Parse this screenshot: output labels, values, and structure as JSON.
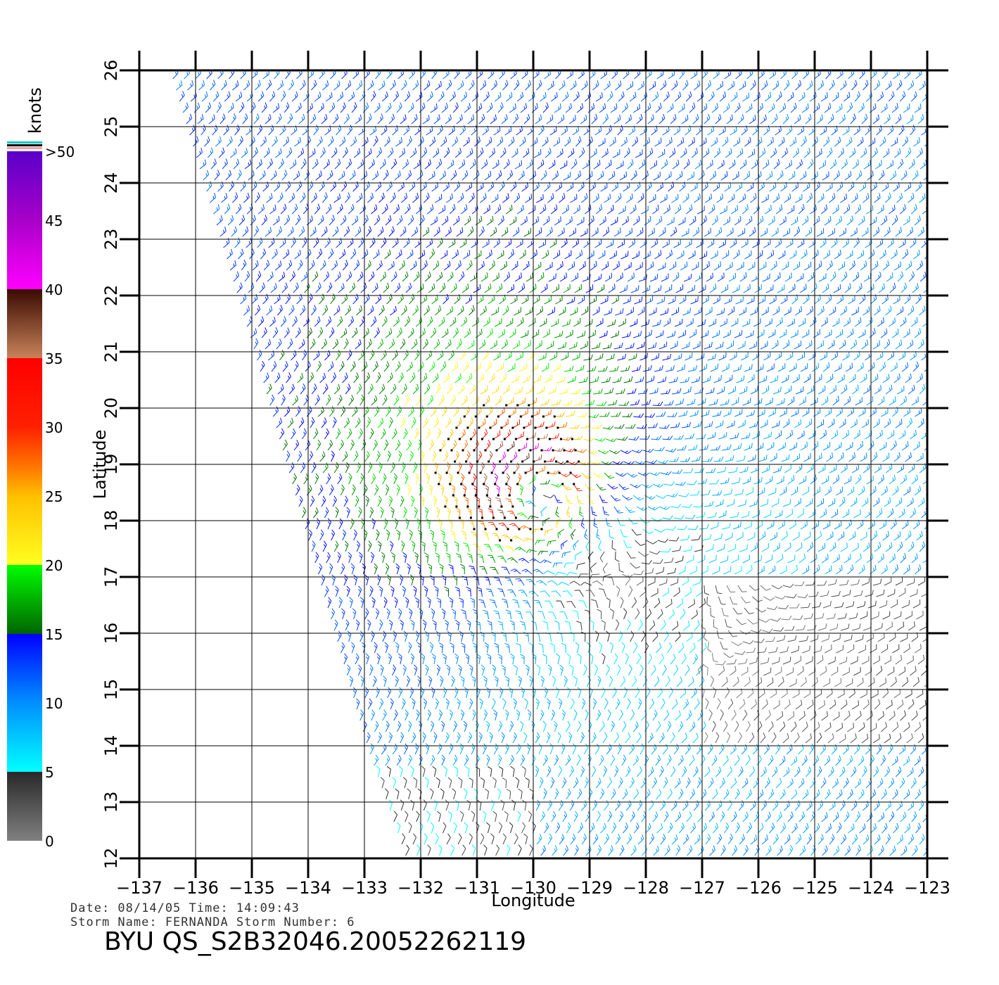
{
  "chart_data": {
    "type": "scatter",
    "plot_kind": "wind-barb vector field",
    "xlabel": "Longitude",
    "ylabel": "Latitude",
    "xlim": [
      -137,
      -123
    ],
    "ylim": [
      12,
      26
    ],
    "x_ticks": [
      -137,
      -136,
      -135,
      -134,
      -133,
      -132,
      -131,
      -130,
      -129,
      -128,
      -127,
      -126,
      -125,
      -124,
      -123
    ],
    "y_ticks": [
      12,
      13,
      14,
      15,
      16,
      17,
      18,
      19,
      20,
      21,
      22,
      23,
      24,
      25,
      26
    ],
    "x_tick_labels": [
      "−137",
      "−136",
      "−135",
      "−134",
      "−133",
      "−132",
      "−131",
      "−130",
      "−129",
      "−128",
      "−127",
      "−126",
      "−125",
      "−124",
      "−123"
    ],
    "y_tick_labels": [
      "12",
      "13",
      "14",
      "15",
      "16",
      "17",
      "18",
      "19",
      "20",
      "21",
      "22",
      "23",
      "24",
      "25",
      "26"
    ],
    "grid": true,
    "swath_west_edge": [
      [
        -136.5,
        26
      ],
      [
        -135,
        21
      ],
      [
        -133,
        14
      ],
      [
        -132.3,
        12
      ]
    ],
    "storm_center": {
      "lon": -130,
      "lat": 18.5
    },
    "storm_peak_speed_knots": 42,
    "ambient_flow_deg_from": 45,
    "ambient_speed_knots": 11,
    "colorbar": {
      "title": "knots",
      "labels": [
        ">50",
        "45",
        "40",
        "35",
        "30",
        "25",
        "20",
        "15",
        "10",
        "5",
        "0"
      ],
      "stops": [
        {
          "knots": 0,
          "color": "#808080"
        },
        {
          "knots": 5,
          "color": "#282828"
        },
        {
          "knots": 5.01,
          "color": "#00ffff"
        },
        {
          "knots": 10,
          "color": "#0090ff"
        },
        {
          "knots": 15,
          "color": "#0000ff"
        },
        {
          "knots": 15.01,
          "color": "#006400"
        },
        {
          "knots": 20,
          "color": "#00ff00"
        },
        {
          "knots": 20.01,
          "color": "#ffff20"
        },
        {
          "knots": 25,
          "color": "#ffc000"
        },
        {
          "knots": 27,
          "color": "#ff7a00"
        },
        {
          "knots": 30,
          "color": "#ff2000"
        },
        {
          "knots": 35,
          "color": "#ff0000"
        },
        {
          "knots": 35.01,
          "color": "#c8825a"
        },
        {
          "knots": 40,
          "color": "#3a0a00"
        },
        {
          "knots": 40.01,
          "color": "#ff00ff"
        },
        {
          "knots": 45,
          "color": "#a800c8"
        },
        {
          "knots": 50,
          "color": "#5a00c8"
        }
      ]
    }
  },
  "footer": {
    "date_line": "Date:  08/14/05   Time:  14:09:43",
    "storm_line": "Storm  Name:  FERNANDA    Storm  Number:  6",
    "product_id": "BYU  QS_S2B32046.20052262119"
  }
}
